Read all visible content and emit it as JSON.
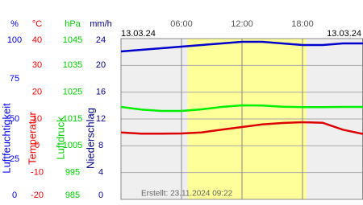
{
  "chart_data": {
    "type": "line",
    "date_left": "13.03.24",
    "date_right": "13.03.24",
    "footer": "Erstellt: 23.11.2024 09:22",
    "xlim": [
      0,
      24
    ],
    "xticks": [
      {
        "value": 6,
        "label": "06:00"
      },
      {
        "value": 12,
        "label": "12:00"
      },
      {
        "value": 18,
        "label": "18:00"
      }
    ],
    "daylight": [
      6.6,
      18.4
    ],
    "grid": true,
    "y_axes": [
      {
        "unit": "%",
        "label": "Luftfeuchtigkeit",
        "color": "#0000ee",
        "ylim": [
          0,
          100
        ],
        "yticks": [
          0,
          25,
          50,
          75,
          100
        ]
      },
      {
        "unit": "°C",
        "label": "Temperatur",
        "color": "#ee0000",
        "ylim": [
          -20,
          40
        ],
        "yticks": [
          -20,
          -10,
          0,
          10,
          20,
          30,
          40
        ]
      },
      {
        "unit": "hPa",
        "label": "Luftdruck",
        "color": "#00cc00",
        "ylim": [
          985,
          1045
        ],
        "yticks": [
          985,
          995,
          1005,
          1015,
          1025,
          1035,
          1045
        ]
      },
      {
        "unit": "mm/h",
        "label": "Niederschlag",
        "color": "#000080",
        "ylim": [
          0,
          24
        ],
        "yticks": [
          0,
          4,
          8,
          12,
          16,
          20,
          24
        ]
      }
    ],
    "x": [
      0,
      2,
      4,
      6,
      8,
      10,
      12,
      14,
      16,
      18,
      20,
      22,
      24
    ],
    "series": [
      {
        "axis": 0,
        "color": "#0000cc",
        "values": [
          92,
          93,
          94,
          95,
          96,
          97,
          98,
          98,
          97,
          96,
          96,
          97,
          97
        ]
      },
      {
        "axis": 1,
        "color": "#dd0000",
        "values": [
          5,
          4.5,
          4.5,
          4.6,
          5,
          6,
          7,
          8,
          8.5,
          8.8,
          8.6,
          6,
          4.4
        ]
      },
      {
        "axis": 2,
        "color": "#00ee00",
        "values": [
          1019.5,
          1018.5,
          1018,
          1018,
          1018.6,
          1019.5,
          1020.1,
          1020,
          1019.6,
          1019.4,
          1019.4,
          1019.5,
          1019.5
        ]
      }
    ]
  }
}
